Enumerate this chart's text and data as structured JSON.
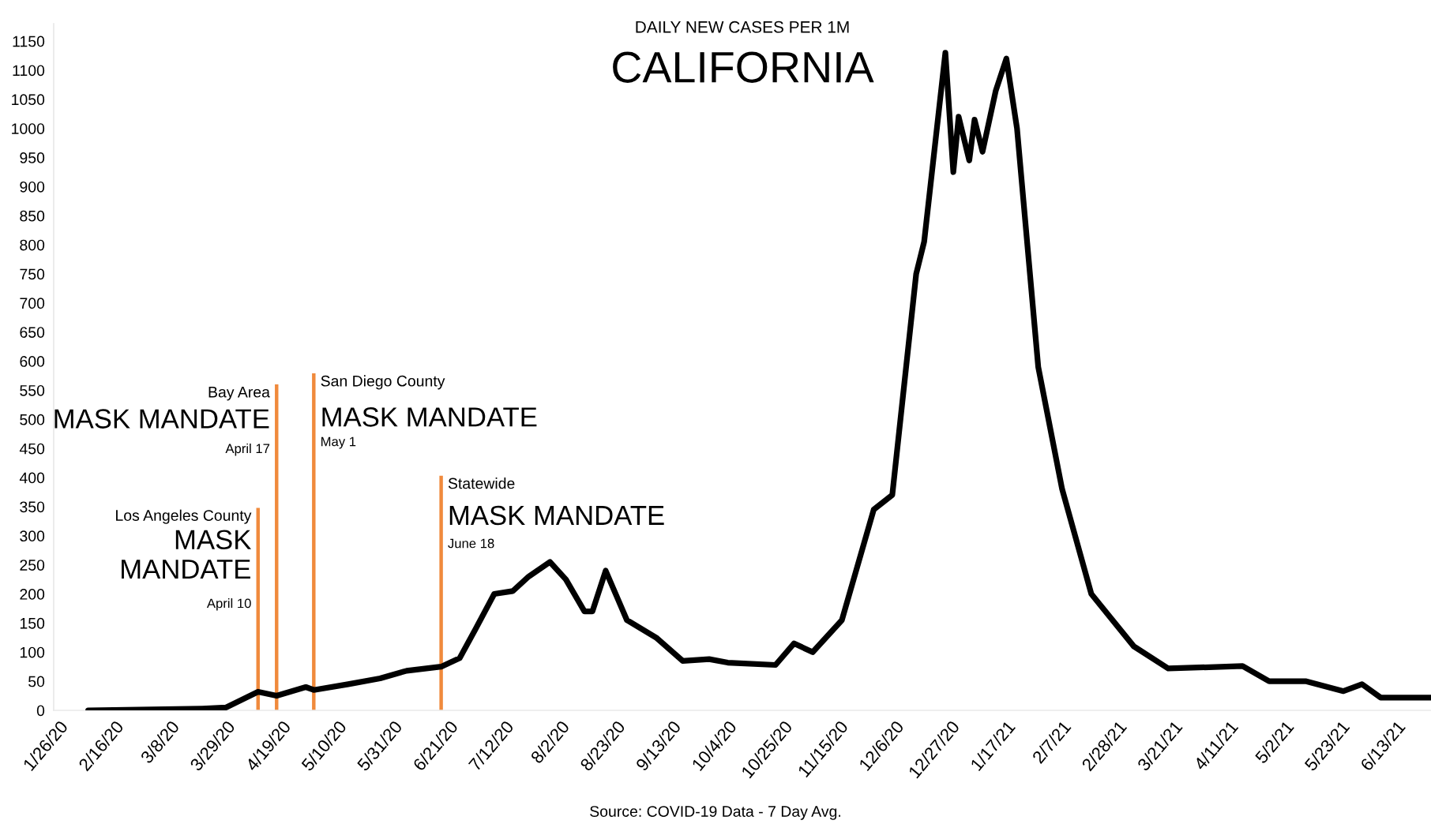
{
  "chart_data": {
    "type": "line",
    "title": "CALIFORNIA",
    "subtitle": "DAILY NEW CASES PER 1M",
    "x": [
      "2020-02-06",
      "2020-03-20",
      "2020-03-29",
      "2020-04-10",
      "2020-04-17",
      "2020-04-28",
      "2020-05-01",
      "2020-05-14",
      "2020-05-26",
      "2020-06-05",
      "2020-06-18",
      "2020-06-25",
      "2020-07-01",
      "2020-07-08",
      "2020-07-15",
      "2020-07-21",
      "2020-07-29",
      "2020-08-04",
      "2020-08-11",
      "2020-08-14",
      "2020-08-19",
      "2020-08-27",
      "2020-09-07",
      "2020-09-17",
      "2020-09-27",
      "2020-10-04",
      "2020-10-22",
      "2020-10-29",
      "2020-11-05",
      "2020-11-16",
      "2020-11-28",
      "2020-12-05",
      "2020-12-14",
      "2020-12-17",
      "2020-12-25",
      "2020-12-28",
      "2020-12-30",
      "2021-01-03",
      "2021-01-05",
      "2021-01-08",
      "2021-01-13",
      "2021-01-17",
      "2021-01-21",
      "2021-01-29",
      "2021-02-07",
      "2021-02-18",
      "2021-03-06",
      "2021-03-19",
      "2021-04-16",
      "2021-04-26",
      "2021-05-10",
      "2021-05-24",
      "2021-05-31",
      "2021-06-07",
      "2021-06-26"
    ],
    "series": [
      {
        "color": "#000000",
        "values": [
          0,
          3,
          5,
          32,
          25,
          40,
          35,
          45,
          55,
          68,
          75,
          90,
          140,
          200,
          205,
          230,
          255,
          225,
          170,
          170,
          240,
          155,
          125,
          85,
          88,
          82,
          78,
          115,
          100,
          155,
          345,
          370,
          750,
          805,
          1130,
          925,
          1020,
          945,
          1015,
          960,
          1065,
          1120,
          1000,
          590,
          380,
          200,
          110,
          72,
          76,
          50,
          50,
          33,
          45,
          22,
          22
        ]
      }
    ],
    "xlim": [
      "2020-01-24",
      "2021-06-26"
    ],
    "xticks": [
      {
        "value": "2020-01-26",
        "label": "1/26/20"
      },
      {
        "value": "2020-02-16",
        "label": "2/16/20"
      },
      {
        "value": "2020-03-08",
        "label": "3/8/20"
      },
      {
        "value": "2020-03-29",
        "label": "3/29/20"
      },
      {
        "value": "2020-04-19",
        "label": "4/19/20"
      },
      {
        "value": "2020-05-10",
        "label": "5/10/20"
      },
      {
        "value": "2020-05-31",
        "label": "5/31/20"
      },
      {
        "value": "2020-06-21",
        "label": "6/21/20"
      },
      {
        "value": "2020-07-12",
        "label": "7/12/20"
      },
      {
        "value": "2020-08-02",
        "label": "8/2/20"
      },
      {
        "value": "2020-08-23",
        "label": "8/23/20"
      },
      {
        "value": "2020-09-13",
        "label": "9/13/20"
      },
      {
        "value": "2020-10-04",
        "label": "10/4/20"
      },
      {
        "value": "2020-10-25",
        "label": "10/25/20"
      },
      {
        "value": "2020-11-15",
        "label": "11/15/20"
      },
      {
        "value": "2020-12-06",
        "label": "12/6/20"
      },
      {
        "value": "2020-12-27",
        "label": "12/27/20"
      },
      {
        "value": "2021-01-17",
        "label": "1/17/21"
      },
      {
        "value": "2021-02-07",
        "label": "2/7/21"
      },
      {
        "value": "2021-02-28",
        "label": "2/28/21"
      },
      {
        "value": "2021-03-21",
        "label": "3/21/21"
      },
      {
        "value": "2021-04-11",
        "label": "4/11/21"
      },
      {
        "value": "2021-05-02",
        "label": "5/2/21"
      },
      {
        "value": "2021-05-23",
        "label": "5/23/21"
      },
      {
        "value": "2021-06-13",
        "label": "6/13/21"
      }
    ],
    "ylim": [
      0,
      1180
    ],
    "yticks": [
      0,
      50,
      100,
      150,
      200,
      250,
      300,
      350,
      400,
      450,
      500,
      550,
      600,
      650,
      700,
      750,
      800,
      850,
      900,
      950,
      1000,
      1050,
      1100,
      1150
    ],
    "ref_lines": [
      {
        "axis": "x",
        "value": "2020-04-10",
        "color": "#f08a3c"
      },
      {
        "axis": "x",
        "value": "2020-04-17",
        "color": "#f08a3c"
      },
      {
        "axis": "x",
        "value": "2020-05-01",
        "color": "#f08a3c"
      },
      {
        "axis": "x",
        "value": "2020-06-18",
        "color": "#f08a3c"
      }
    ],
    "annotations": [
      {
        "text": "Los Angeles County",
        "x": "2020-04-10",
        "y": 345
      },
      {
        "text": "MASK\nMANDATE",
        "x": "2020-04-10",
        "y": 264
      },
      {
        "text": "April 10",
        "x": "2020-04-10",
        "y": 182
      },
      {
        "text": "Bay Area",
        "x": "2020-04-17",
        "y": 557
      },
      {
        "text": "MASK MANDATE",
        "x": "2020-04-17",
        "y": 497
      },
      {
        "text": "April 17",
        "x": "2020-04-17",
        "y": 448
      },
      {
        "text": "San Diego County",
        "x": "2020-05-01",
        "y": 576
      },
      {
        "text": "MASK MANDATE",
        "x": "2020-05-01",
        "y": 500
      },
      {
        "text": "May 1",
        "x": "2020-05-01",
        "y": 460
      },
      {
        "text": "Statewide",
        "x": "2020-06-18",
        "y": 400
      },
      {
        "text": "MASK MANDATE",
        "x": "2020-06-18",
        "y": 331
      },
      {
        "text": "June 18",
        "x": "2020-06-18",
        "y": 285
      },
      "Source: COVID-19 Data - 7 Day Avg."
    ],
    "grid": false,
    "legend": false
  }
}
